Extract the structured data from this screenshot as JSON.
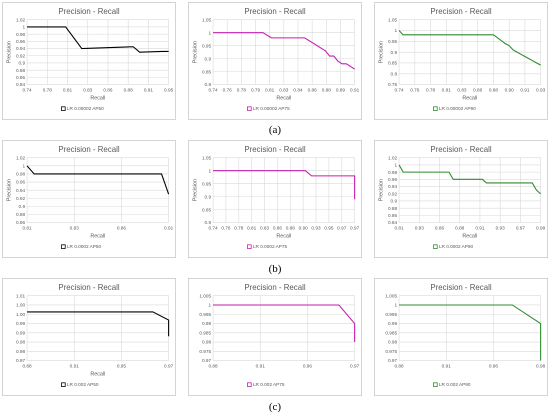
{
  "row_labels": [
    "(a)",
    "(b)",
    "(c)"
  ],
  "chart_data": [
    {
      "type": "line",
      "title": "Precision - Recall",
      "xlabel": "Recall",
      "ylabel": "Precision",
      "series": [
        {
          "name": "LR 0.00002 AP50",
          "color": "#000000",
          "x": [
            0.74,
            0.745,
            0.8,
            0.825,
            0.905,
            0.915,
            0.95,
            0.96
          ],
          "y": [
            1.0,
            1.0,
            1.0,
            0.94,
            0.945,
            0.93,
            0.932,
            0.932
          ]
        }
      ],
      "xlim": [
        0.74,
        0.96
      ],
      "ylim": [
        0.84,
        1.02
      ],
      "xticks": [
        "0.74",
        "0.78",
        "0.81",
        "0.83",
        "0.86",
        "0.88",
        "0.91",
        "0.95"
      ],
      "yticks": [
        "0.84",
        "0.86",
        "0.88",
        "0.9",
        "0.92",
        "0.94",
        "0.96",
        "0.98",
        "1",
        "1.02"
      ],
      "grid": true,
      "legend": "bottom"
    },
    {
      "type": "line",
      "title": "Precision - Recall",
      "xlabel": "Recall",
      "ylabel": "Precision",
      "series": [
        {
          "name": "LR 0.00002 AP75",
          "color": "#c21fae",
          "x": [
            0.74,
            0.8,
            0.81,
            0.85,
            0.86,
            0.875,
            0.88,
            0.885,
            0.89,
            0.895,
            0.9,
            0.91
          ],
          "y": [
            1.0,
            1.0,
            0.98,
            0.98,
            0.96,
            0.93,
            0.91,
            0.91,
            0.89,
            0.88,
            0.88,
            0.86
          ]
        }
      ],
      "xlim": [
        0.74,
        0.91
      ],
      "ylim": [
        0.8,
        1.05
      ],
      "xticks": [
        "0.74",
        "0.76",
        "0.78",
        "0.79",
        "0.81",
        "0.83",
        "0.84",
        "0.86",
        "0.88",
        "0.89",
        "0.91"
      ],
      "yticks": [
        "0.8",
        "0.85",
        "0.9",
        "0.95",
        "1",
        "1.05"
      ],
      "grid": true,
      "legend": "bottom"
    },
    {
      "type": "line",
      "title": "Precision - Recall",
      "xlabel": "Recall",
      "ylabel": "Precision",
      "series": [
        {
          "name": "LR 0.00002 AP90",
          "color": "#2e8b2e",
          "x": [
            0.74,
            0.745,
            0.76,
            0.86,
            0.875,
            0.88,
            0.885,
            0.89,
            0.895,
            0.9,
            0.905,
            0.91,
            0.915,
            0.92
          ],
          "y": [
            1.0,
            0.98,
            0.98,
            0.98,
            0.94,
            0.93,
            0.91,
            0.9,
            0.89,
            0.88,
            0.87,
            0.86,
            0.85,
            0.84
          ]
        }
      ],
      "xlim": [
        0.74,
        0.92
      ],
      "ylim": [
        0.75,
        1.05
      ],
      "xticks": [
        "0.74",
        "0.76",
        "0.78",
        "0.81",
        "0.83",
        "0.86",
        "0.88",
        "0.90",
        "0.91",
        "0.93"
      ],
      "yticks": [
        "0.75",
        "0.8",
        "0.85",
        "0.9",
        "0.95",
        "1",
        "1.05"
      ],
      "grid": true,
      "legend": "bottom"
    },
    {
      "type": "line",
      "title": "Precision - Recall",
      "xlabel": "Recall",
      "ylabel": "Precision",
      "series": [
        {
          "name": "LR 0.0002 AP50",
          "color": "#000000",
          "x": [
            0.81,
            0.815,
            0.82,
            0.905,
            0.91
          ],
          "y": [
            1.0,
            0.98,
            0.98,
            0.98,
            0.93
          ]
        }
      ],
      "xlim": [
        0.81,
        0.91
      ],
      "ylim": [
        0.86,
        1.02
      ],
      "xticks": [
        "0.81",
        "0.83",
        "0.86",
        "0.91"
      ],
      "yticks": [
        "0.86",
        "0.88",
        "0.9",
        "0.92",
        "0.94",
        "0.96",
        "0.98",
        "1",
        "1.02"
      ],
      "grid": true,
      "legend": "bottom"
    },
    {
      "type": "line",
      "title": "Precision - Recall",
      "xlabel": "Recall",
      "ylabel": "Precision",
      "series": [
        {
          "name": "LR 0.0002 AP75",
          "color": "#c21fae",
          "x": [
            0.74,
            0.89,
            0.9,
            0.97,
            0.97
          ],
          "y": [
            1.0,
            1.0,
            0.98,
            0.98,
            0.89
          ]
        }
      ],
      "xlim": [
        0.74,
        0.97
      ],
      "ylim": [
        0.8,
        1.05
      ],
      "xticks": [
        "0.74",
        "0.76",
        "0.78",
        "0.81",
        "0.83",
        "0.86",
        "0.88",
        "0.90",
        "0.93",
        "0.95",
        "0.97",
        "0.97"
      ],
      "yticks": [
        "0.8",
        "0.85",
        "0.9",
        "0.95",
        "1",
        "1.05"
      ],
      "grid": true,
      "legend": "bottom"
    },
    {
      "type": "line",
      "title": "Precision - Recall",
      "xlabel": "Recall",
      "ylabel": "Precision",
      "series": [
        {
          "name": "LR 0.0002 AP90",
          "color": "#2e8b2e",
          "x": [
            0.81,
            0.815,
            0.82,
            0.87,
            0.875,
            0.91,
            0.915,
            0.97,
            0.975,
            0.98
          ],
          "y": [
            1.0,
            0.98,
            0.98,
            0.98,
            0.96,
            0.96,
            0.95,
            0.95,
            0.93,
            0.92
          ]
        }
      ],
      "xlim": [
        0.81,
        0.98
      ],
      "ylim": [
        0.84,
        1.02
      ],
      "xticks": [
        "0.81",
        "0.83",
        "0.86",
        "0.88",
        "0.91",
        "0.93",
        "0.97",
        "0.99"
      ],
      "yticks": [
        "0.84",
        "0.86",
        "0.88",
        "0.9",
        "0.92",
        "0.94",
        "0.96",
        "0.98",
        "1",
        "1.02"
      ],
      "grid": true,
      "legend": "bottom"
    },
    {
      "type": "line",
      "title": "Precision - Recall",
      "xlabel": "Recall",
      "ylabel": "",
      "series": [
        {
          "name": "LR 0.002 AP50",
          "color": "#000000",
          "x": [
            0.88,
            0.96,
            0.97,
            0.97
          ],
          "y": [
            1.0,
            1.0,
            0.995,
            0.985
          ]
        }
      ],
      "xlim": [
        0.88,
        0.97
      ],
      "ylim": [
        0.97,
        1.01
      ],
      "xticks": [
        "0.88",
        "0.91",
        "0.95",
        "0.97"
      ],
      "yticks": [
        "0.97",
        "0.98",
        "0.98",
        "0.99",
        "0.99",
        "1.00",
        "1.00",
        "1.01"
      ],
      "grid": true,
      "legend": "bottom"
    },
    {
      "type": "line",
      "title": "Precision - Recall",
      "xlabel": "",
      "ylabel": "",
      "series": [
        {
          "name": "LR 0.002 AP75",
          "color": "#c21fae",
          "x": [
            0.88,
            0.96,
            0.97,
            0.97
          ],
          "y": [
            1.0,
            1.0,
            0.99,
            0.98
          ]
        }
      ],
      "xlim": [
        0.88,
        0.97
      ],
      "ylim": [
        0.97,
        1.005
      ],
      "xticks": [
        "0.88",
        "0.91",
        "0.96",
        "0.97"
      ],
      "yticks": [
        "0.97",
        "0.975",
        "0.98",
        "0.985",
        "0.99",
        "0.995",
        "1",
        "1.005"
      ],
      "grid": true,
      "legend": "bottom"
    },
    {
      "type": "line",
      "title": "Precision - Recall",
      "xlabel": "",
      "ylabel": "",
      "series": [
        {
          "name": "LR 0.002 AP90",
          "color": "#2e8b2e",
          "x": [
            0.88,
            0.96,
            0.98,
            0.98
          ],
          "y": [
            1.0,
            1.0,
            0.99,
            0.97
          ]
        }
      ],
      "xlim": [
        0.88,
        0.98
      ],
      "ylim": [
        0.97,
        1.005
      ],
      "xticks": [
        "0.88",
        "0.91",
        "0.96",
        "0.98"
      ],
      "yticks": [
        "0.97",
        "0.975",
        "0.98",
        "0.985",
        "0.99",
        "0.995",
        "1",
        "1.005"
      ],
      "grid": true,
      "legend": "bottom"
    }
  ]
}
